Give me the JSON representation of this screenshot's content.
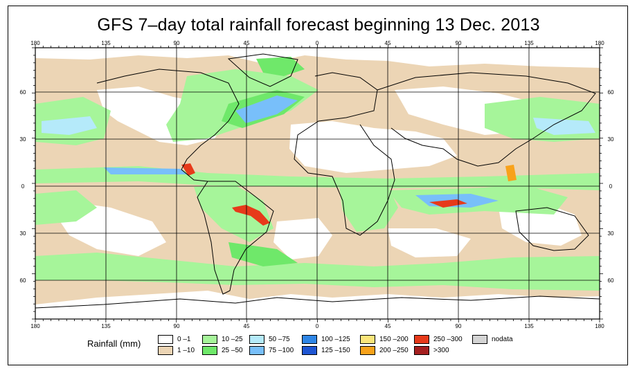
{
  "title": "GFS 7–day total rainfall forecast beginning 13 Dec. 2013",
  "axes": {
    "top_lon_labels": [
      "180",
      "135",
      "90",
      "45",
      "0",
      "45",
      "90",
      "135",
      "180"
    ],
    "bottom_lon_labels": [
      "180",
      "135",
      "90",
      "45",
      "0",
      "45",
      "90",
      "135",
      "180"
    ],
    "left_lat_labels": [
      "60",
      "30",
      "0",
      "30",
      "60"
    ],
    "right_lat_labels": [
      "60",
      "30",
      "0",
      "30",
      "60"
    ]
  },
  "legend": {
    "title": "Rainfall (mm)",
    "items": [
      {
        "label": "0 –1",
        "color": "#ffffff"
      },
      {
        "label": "1 –10",
        "color": "#ecd5b5"
      },
      {
        "label": "10 –25",
        "color": "#a6f59a"
      },
      {
        "label": "25 –50",
        "color": "#6fe86a"
      },
      {
        "label": "50 –75",
        "color": "#b5eafa"
      },
      {
        "label": "75 –100",
        "color": "#78bffa"
      },
      {
        "label": "100 –125",
        "color": "#2f86e6"
      },
      {
        "label": "125 –150",
        "color": "#1f56d2"
      },
      {
        "label": "150 –200",
        "color": "#fbe57a"
      },
      {
        "label": "200 –250",
        "color": "#f8a21a"
      },
      {
        "label": "250 –300",
        "color": "#e73a1a"
      },
      {
        "label": ">300",
        "color": "#a52020"
      },
      {
        "label": "nodata",
        "color": "#d4d4d4"
      }
    ]
  }
}
